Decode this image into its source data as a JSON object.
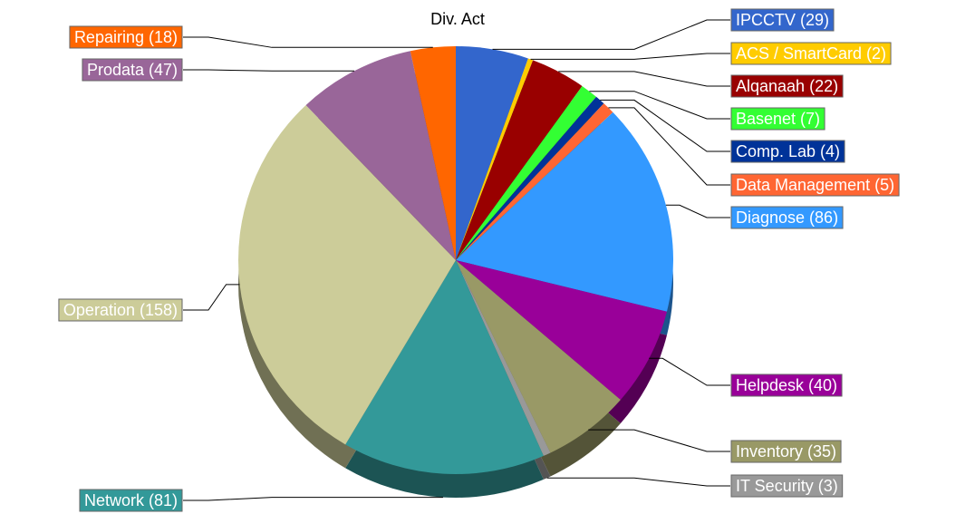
{
  "chart_data": {
    "type": "pie",
    "title": "Div. Act",
    "values": [
      29,
      2,
      22,
      7,
      4,
      5,
      86,
      40,
      35,
      3,
      81,
      158,
      47,
      18
    ],
    "value_labels": [
      "IPCCTV (29)",
      "ACS / SmartCard (2)",
      "Alqanaah (22)",
      "Basenet (7)",
      "Comp. Lab (4)",
      "Data Management (5)",
      "Diagnose (86)",
      "Helpdesk (40)",
      "Inventory (35)",
      "IT Security (3)",
      "Network (81)",
      "Operation (158)",
      "Prodata (47)",
      "Repairing (18)"
    ],
    "colors": [
      "#3366cc",
      "#ffcc00",
      "#990000",
      "#33ff33",
      "#003399",
      "#ff6633",
      "#3399ff",
      "#990099",
      "#999966",
      "#999999",
      "#339999",
      "#cccc99",
      "#996699",
      "#ff6600"
    ]
  }
}
